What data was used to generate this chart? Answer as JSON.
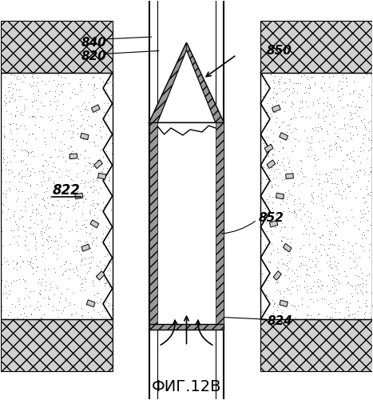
{
  "title": "ФИГ.12В",
  "title_fontsize": 14,
  "background_color": "#ffffff",
  "label_fontsize": 11,
  "fig_width": 4.67,
  "fig_height": 5.0
}
